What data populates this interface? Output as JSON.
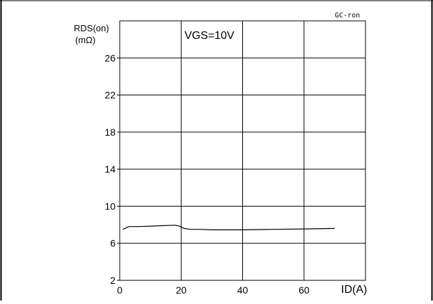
{
  "figure_id": "GC-ron",
  "chart_data": {
    "type": "line",
    "title": "",
    "xlabel": "ID(A)",
    "ylabel_line1": "RDS(on)",
    "ylabel_line2": "(mΩ)",
    "annotation": "VGS=10V",
    "xlim": [
      0,
      80
    ],
    "ylim": [
      2,
      30
    ],
    "x_ticks": [
      0,
      20,
      40,
      60
    ],
    "y_ticks": [
      2,
      6,
      10,
      14,
      18,
      22,
      26
    ],
    "grid": true,
    "series": [
      {
        "x": [
          1,
          3,
          6,
          10,
          14,
          18,
          19.5,
          21,
          23,
          26,
          30,
          40,
          50,
          60,
          70
        ],
        "values": [
          7.5,
          7.8,
          7.8,
          7.85,
          7.9,
          7.95,
          7.85,
          7.6,
          7.5,
          7.5,
          7.45,
          7.45,
          7.5,
          7.55,
          7.6
        ]
      }
    ]
  }
}
